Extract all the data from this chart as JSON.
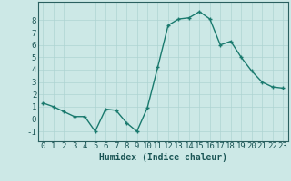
{
  "x": [
    0,
    1,
    2,
    3,
    4,
    5,
    6,
    7,
    8,
    9,
    10,
    11,
    12,
    13,
    14,
    15,
    16,
    17,
    18,
    19,
    20,
    21,
    22,
    23
  ],
  "y": [
    1.3,
    1.0,
    0.6,
    0.2,
    0.2,
    -1.0,
    0.8,
    0.7,
    -0.3,
    -1.0,
    0.9,
    4.2,
    7.6,
    8.1,
    8.2,
    8.7,
    8.1,
    6.0,
    6.3,
    5.0,
    3.9,
    3.0,
    2.6,
    2.5
  ],
  "line_color": "#1a7a6e",
  "marker": "+",
  "bg_color": "#cce8e6",
  "grid_color": "#aed4d2",
  "xlabel": "Humidex (Indice chaleur)",
  "ylim": [
    -1.8,
    9.5
  ],
  "xlim": [
    -0.5,
    23.5
  ],
  "yticks": [
    -1,
    0,
    1,
    2,
    3,
    4,
    5,
    6,
    7,
    8
  ],
  "xticks": [
    0,
    1,
    2,
    3,
    4,
    5,
    6,
    7,
    8,
    9,
    10,
    11,
    12,
    13,
    14,
    15,
    16,
    17,
    18,
    19,
    20,
    21,
    22,
    23
  ],
  "xlabel_fontsize": 7,
  "tick_fontsize": 6.5,
  "line_width": 1.0,
  "marker_size": 3.5,
  "marker_edge_width": 1.0
}
